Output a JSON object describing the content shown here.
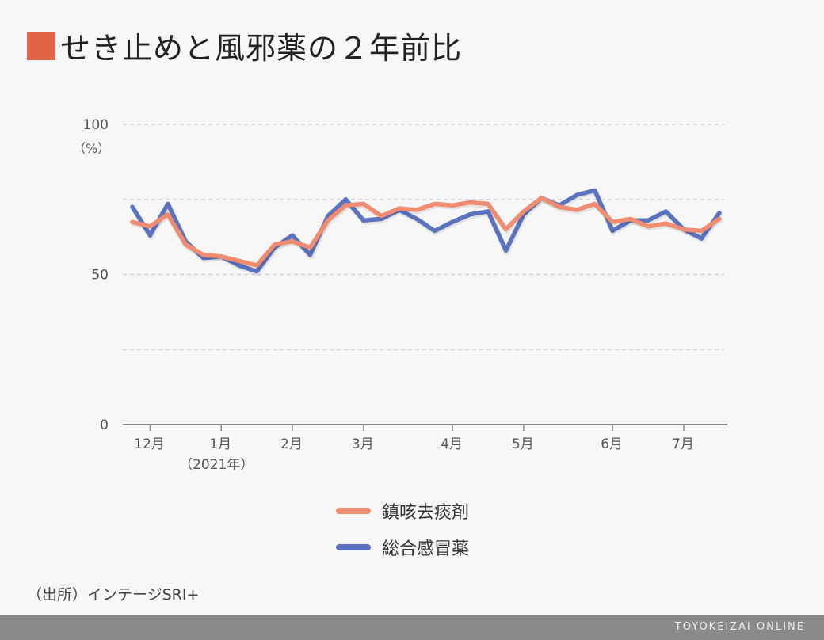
{
  "title": "せき止めと風邪薬の２年前比",
  "colors": {
    "title_square": "#e06445",
    "seki": "#f08c70",
    "kaze": "#5b73bf",
    "grid": "#cfcfcf",
    "axis": "#888888",
    "footer_bg": "#8a8a8a"
  },
  "source": "（出所）インテージSRI+",
  "footer": "TOYOKEIZAI ONLINE",
  "chart_data": {
    "type": "line",
    "ylim": [
      0,
      100
    ],
    "y_ticks": [
      0,
      50,
      100
    ],
    "y_unit": "（%）",
    "x_tick_labels": [
      {
        "label": "12月",
        "week": 1
      },
      {
        "label": "1月",
        "week": 5
      },
      {
        "label": "2月",
        "week": 9
      },
      {
        "label": "3月",
        "week": 13
      },
      {
        "label": "4月",
        "week": 18
      },
      {
        "label": "5月",
        "week": 22
      },
      {
        "label": "6月",
        "week": 27
      },
      {
        "label": "7月",
        "week": 31
      }
    ],
    "x_sub_label": "（2021年）",
    "series": [
      {
        "name": "鎮咳去痰剤",
        "color_key": "seki",
        "values": [
          67.5,
          66,
          70,
          60,
          56.5,
          56,
          54.5,
          53,
          60,
          61,
          59,
          68,
          73,
          73.5,
          69.5,
          72,
          71.5,
          73.5,
          73,
          74,
          73.5,
          65,
          71,
          75.5,
          72.5,
          71.5,
          73.5,
          67.5,
          68.5,
          66,
          67,
          65,
          64.5,
          68.5
        ]
      },
      {
        "name": "総合感冒薬",
        "color_key": "kaze",
        "values": [
          72.5,
          63,
          73.5,
          61,
          55.5,
          56,
          53,
          51,
          59,
          63,
          56.5,
          69.5,
          75,
          68,
          68.5,
          71.5,
          68.5,
          64.5,
          67.5,
          70,
          71,
          58,
          70,
          75.5,
          73,
          76.5,
          78,
          64.5,
          68,
          68,
          71,
          65,
          62,
          70.5
        ]
      }
    ]
  }
}
